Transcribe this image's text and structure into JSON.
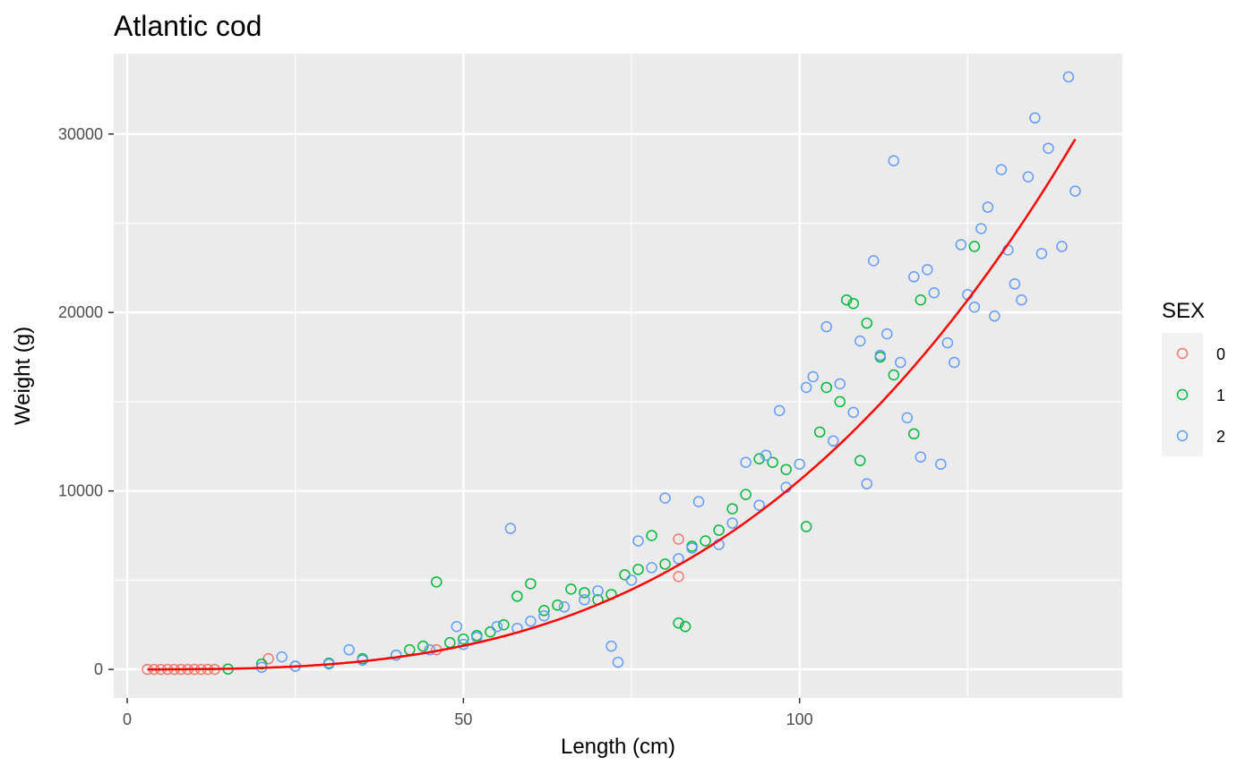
{
  "chart_data": {
    "type": "scatter",
    "title": "Atlantic cod",
    "xlabel": "Length (cm)",
    "ylabel": "Weight (g)",
    "xlim": [
      -2,
      148
    ],
    "ylim": [
      -1600,
      34500
    ],
    "x_ticks": [
      0,
      50,
      100
    ],
    "y_ticks": [
      0,
      10000,
      20000,
      30000
    ],
    "grid": true,
    "legend": {
      "title": "SEX",
      "placement": "right",
      "entries": [
        {
          "label": "0",
          "color": "#F8766D"
        },
        {
          "label": "1",
          "color": "#00BA38"
        },
        {
          "label": "2",
          "color": "#619CFF"
        }
      ]
    },
    "fit_curve": {
      "color": "#FF0000",
      "a": 0.0106,
      "b": 3.0,
      "x_range": [
        3,
        141
      ]
    },
    "series": [
      {
        "name": "0",
        "color": "#F8766D",
        "points": [
          [
            3,
            0
          ],
          [
            4,
            0
          ],
          [
            5,
            0
          ],
          [
            6,
            0
          ],
          [
            7,
            0
          ],
          [
            8,
            0
          ],
          [
            9,
            0
          ],
          [
            10,
            0
          ],
          [
            11,
            0
          ],
          [
            12,
            0
          ],
          [
            13,
            0
          ],
          [
            21,
            600
          ],
          [
            46,
            1100
          ],
          [
            82,
            5200
          ],
          [
            82,
            7300
          ]
        ]
      },
      {
        "name": "1",
        "color": "#00BA38",
        "points": [
          [
            15,
            20
          ],
          [
            20,
            300
          ],
          [
            25,
            180
          ],
          [
            30,
            350
          ],
          [
            35,
            600
          ],
          [
            40,
            800
          ],
          [
            42,
            1100
          ],
          [
            44,
            1300
          ],
          [
            46,
            4900
          ],
          [
            48,
            1500
          ],
          [
            50,
            1700
          ],
          [
            52,
            1900
          ],
          [
            54,
            2100
          ],
          [
            56,
            2500
          ],
          [
            58,
            4100
          ],
          [
            60,
            4800
          ],
          [
            62,
            3300
          ],
          [
            64,
            3600
          ],
          [
            66,
            4500
          ],
          [
            68,
            4300
          ],
          [
            70,
            3900
          ],
          [
            72,
            4200
          ],
          [
            74,
            5300
          ],
          [
            76,
            5600
          ],
          [
            78,
            7500
          ],
          [
            80,
            5900
          ],
          [
            82,
            2600
          ],
          [
            83,
            2400
          ],
          [
            84,
            6900
          ],
          [
            86,
            7200
          ],
          [
            88,
            7800
          ],
          [
            90,
            9000
          ],
          [
            92,
            9800
          ],
          [
            94,
            11800
          ],
          [
            96,
            11600
          ],
          [
            98,
            11200
          ],
          [
            101,
            8000
          ],
          [
            103,
            13300
          ],
          [
            104,
            15800
          ],
          [
            106,
            15000
          ],
          [
            107,
            20700
          ],
          [
            108,
            20500
          ],
          [
            109,
            11700
          ],
          [
            110,
            19400
          ],
          [
            112,
            17500
          ],
          [
            114,
            16500
          ],
          [
            117,
            13200
          ],
          [
            118,
            20700
          ],
          [
            126,
            23700
          ]
        ]
      },
      {
        "name": "2",
        "color": "#619CFF",
        "points": [
          [
            20,
            120
          ],
          [
            23,
            700
          ],
          [
            25,
            180
          ],
          [
            30,
            300
          ],
          [
            33,
            1100
          ],
          [
            35,
            520
          ],
          [
            40,
            800
          ],
          [
            45,
            1100
          ],
          [
            49,
            2400
          ],
          [
            50,
            1400
          ],
          [
            52,
            1800
          ],
          [
            55,
            2400
          ],
          [
            57,
            7900
          ],
          [
            58,
            2300
          ],
          [
            60,
            2700
          ],
          [
            62,
            3000
          ],
          [
            65,
            3500
          ],
          [
            68,
            3900
          ],
          [
            70,
            4400
          ],
          [
            72,
            1300
          ],
          [
            73,
            400
          ],
          [
            75,
            5000
          ],
          [
            76,
            7200
          ],
          [
            78,
            5700
          ],
          [
            80,
            9600
          ],
          [
            82,
            6200
          ],
          [
            84,
            6800
          ],
          [
            85,
            9400
          ],
          [
            88,
            7000
          ],
          [
            90,
            8200
          ],
          [
            92,
            11600
          ],
          [
            94,
            9200
          ],
          [
            95,
            12000
          ],
          [
            97,
            14500
          ],
          [
            98,
            10200
          ],
          [
            100,
            11500
          ],
          [
            101,
            15800
          ],
          [
            102,
            16400
          ],
          [
            104,
            19200
          ],
          [
            105,
            12800
          ],
          [
            106,
            16000
          ],
          [
            108,
            14400
          ],
          [
            109,
            18400
          ],
          [
            110,
            10400
          ],
          [
            111,
            22900
          ],
          [
            112,
            17600
          ],
          [
            113,
            18800
          ],
          [
            114,
            28500
          ],
          [
            115,
            17200
          ],
          [
            116,
            14100
          ],
          [
            117,
            22000
          ],
          [
            118,
            11900
          ],
          [
            119,
            22400
          ],
          [
            120,
            21100
          ],
          [
            121,
            11500
          ],
          [
            122,
            18300
          ],
          [
            123,
            17200
          ],
          [
            124,
            23800
          ],
          [
            125,
            21000
          ],
          [
            126,
            20300
          ],
          [
            127,
            24700
          ],
          [
            128,
            25900
          ],
          [
            129,
            19800
          ],
          [
            130,
            28000
          ],
          [
            131,
            23500
          ],
          [
            132,
            21600
          ],
          [
            133,
            20700
          ],
          [
            134,
            27600
          ],
          [
            135,
            30900
          ],
          [
            136,
            23300
          ],
          [
            137,
            29200
          ],
          [
            140,
            33200
          ],
          [
            141,
            26800
          ],
          [
            139,
            23700
          ]
        ]
      }
    ]
  }
}
